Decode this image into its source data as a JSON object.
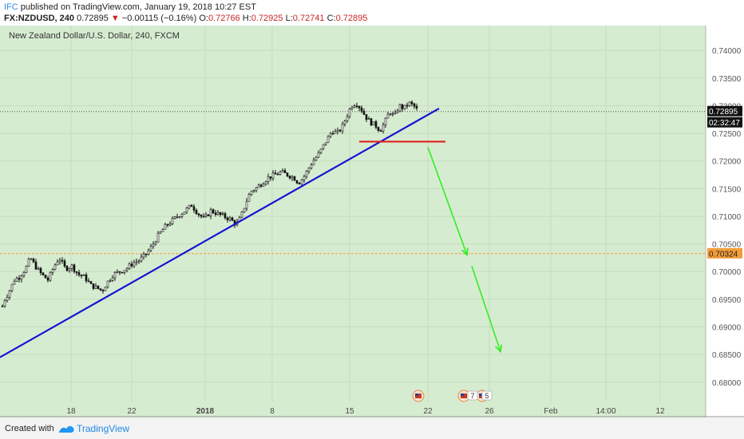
{
  "header": {
    "author": "IFC",
    "published": "published on TradingView.com, January 19, 2018 10:27 EST",
    "symbol": "FX:NZDUSD, 240",
    "last": "0.72895",
    "change": "−0.00115 (−0.16%)",
    "o_label": "O:",
    "o": "0.72766",
    "h_label": "H:",
    "h": "0.72925",
    "l_label": "L:",
    "l": "0.72741",
    "c_label": "C:",
    "c": "0.72895"
  },
  "footer": {
    "created": "Created with",
    "brand": "TradingView"
  },
  "chart_data": {
    "type": "candlestick",
    "title": "New Zealand Dollar/U.S. Dollar, 240, FXCM",
    "ylim": [
      0.6765,
      0.7445
    ],
    "y_ticks": [
      "0.74000",
      "0.73500",
      "0.73000",
      "0.72500",
      "0.72000",
      "0.71500",
      "0.71000",
      "0.70500",
      "0.70000",
      "0.69500",
      "0.69000",
      "0.68500",
      "0.68000"
    ],
    "x_ticks": [
      "18",
      "22",
      "2018",
      "8",
      "15",
      "22",
      "26",
      "Feb",
      "14:00",
      "12"
    ],
    "price_labels": {
      "last": "0.72895",
      "countdown": "02:32:47",
      "horizontal_line": "0.70324"
    },
    "last_price": 0.72895,
    "horizontal_line": 0.70324,
    "event_badges": [
      "7",
      "5"
    ],
    "price_path": [
      [
        0,
        0.6915
      ],
      [
        4,
        0.6945
      ],
      [
        10,
        0.696
      ],
      [
        18,
        0.6985
      ],
      [
        24,
        0.699
      ],
      [
        32,
        0.7005
      ],
      [
        38,
        0.7025
      ],
      [
        44,
        0.701
      ],
      [
        52,
        0.6995
      ],
      [
        60,
        0.6985
      ],
      [
        68,
        0.701
      ],
      [
        74,
        0.7025
      ],
      [
        82,
        0.7005
      ],
      [
        90,
        0.701
      ],
      [
        98,
        0.6995
      ],
      [
        106,
        0.699
      ],
      [
        114,
        0.6975
      ],
      [
        122,
        0.697
      ],
      [
        128,
        0.6965
      ],
      [
        134,
        0.698
      ],
      [
        142,
        0.6995
      ],
      [
        150,
        0.7
      ],
      [
        158,
        0.7005
      ],
      [
        166,
        0.7015
      ],
      [
        174,
        0.702
      ],
      [
        182,
        0.703
      ],
      [
        190,
        0.7045
      ],
      [
        198,
        0.7065
      ],
      [
        206,
        0.708
      ],
      [
        214,
        0.709
      ],
      [
        222,
        0.71
      ],
      [
        232,
        0.711
      ],
      [
        240,
        0.712
      ],
      [
        248,
        0.7105
      ],
      [
        256,
        0.7095
      ],
      [
        264,
        0.711
      ],
      [
        272,
        0.7105
      ],
      [
        280,
        0.71
      ],
      [
        288,
        0.7095
      ],
      [
        296,
        0.7085
      ],
      [
        302,
        0.71
      ],
      [
        308,
        0.7125
      ],
      [
        314,
        0.7145
      ],
      [
        320,
        0.715
      ],
      [
        328,
        0.716
      ],
      [
        336,
        0.717
      ],
      [
        344,
        0.7175
      ],
      [
        352,
        0.718
      ],
      [
        360,
        0.7175
      ],
      [
        368,
        0.717
      ],
      [
        374,
        0.716
      ],
      [
        380,
        0.717
      ],
      [
        386,
        0.7185
      ],
      [
        392,
        0.72
      ],
      [
        398,
        0.721
      ],
      [
        404,
        0.7225
      ],
      [
        410,
        0.724
      ],
      [
        416,
        0.7255
      ],
      [
        422,
        0.725
      ],
      [
        428,
        0.726
      ],
      [
        434,
        0.728
      ],
      [
        440,
        0.73
      ],
      [
        446,
        0.7305
      ],
      [
        452,
        0.7295
      ],
      [
        458,
        0.728
      ],
      [
        464,
        0.727
      ],
      [
        470,
        0.7265
      ],
      [
        476,
        0.7255
      ],
      [
        482,
        0.727
      ],
      [
        488,
        0.729
      ],
      [
        494,
        0.728
      ],
      [
        500,
        0.73
      ],
      [
        506,
        0.7295
      ],
      [
        512,
        0.7305
      ],
      [
        518,
        0.73
      ],
      [
        524,
        0.729
      ]
    ],
    "trendline": [
      [
        0,
        0.6845
      ],
      [
        550,
        0.7295
      ]
    ],
    "support_segment": [
      [
        450,
        0.7235
      ],
      [
        558,
        0.7235
      ]
    ],
    "arrows": [
      [
        [
          536,
          0.7225
        ],
        [
          585,
          0.703
        ]
      ],
      [
        [
          591,
          0.701
        ],
        [
          627,
          0.6855
        ]
      ]
    ]
  }
}
